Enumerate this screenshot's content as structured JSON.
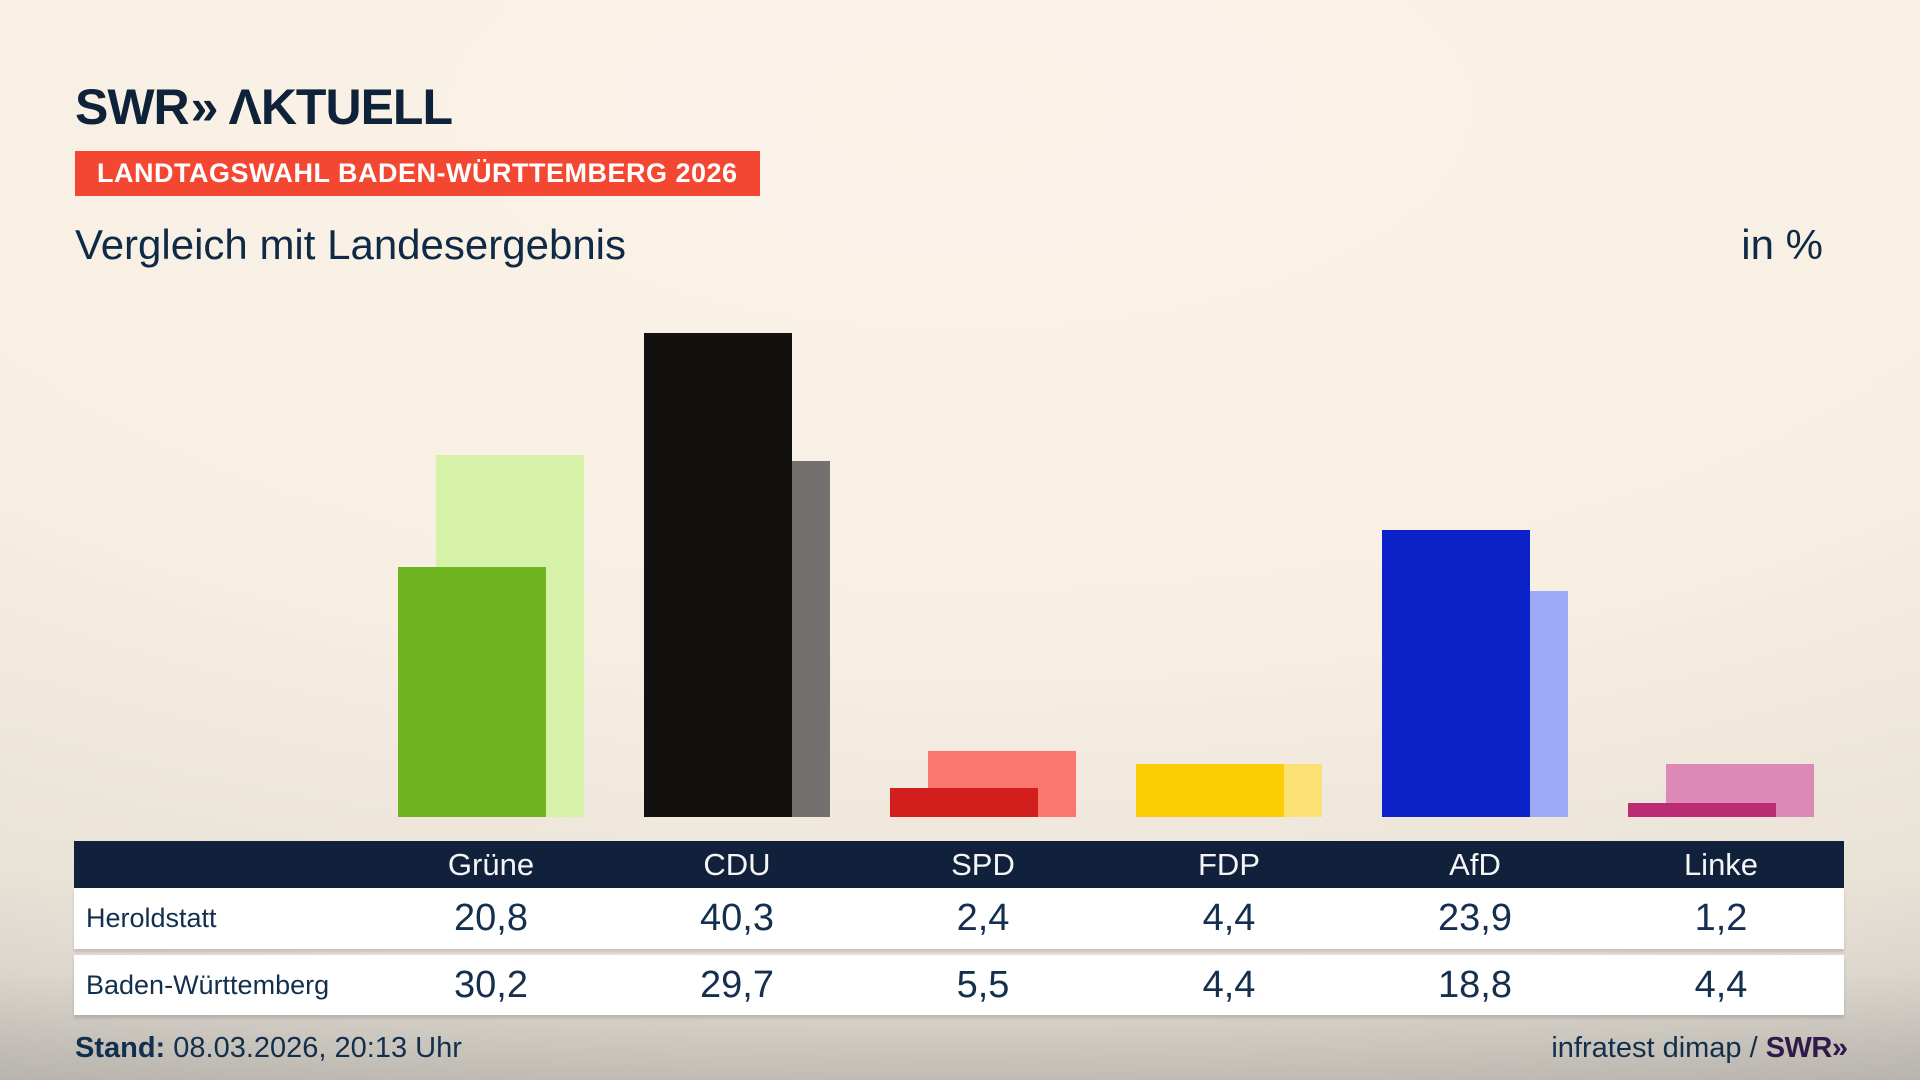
{
  "logo": {
    "brand": "SWR",
    "chevrons": "»",
    "suffix": "ΛKTUELL"
  },
  "badge": "LANDTAGSWAHL BADEN-WÜRTTEMBERG 2026",
  "title": "Vergleich mit Landesergebnis",
  "unit_label": "in %",
  "chart_data": {
    "type": "bar",
    "categories": [
      "Grüne",
      "CDU",
      "SPD",
      "FDP",
      "AfD",
      "Linke"
    ],
    "series": [
      {
        "name": "Heroldstatt",
        "values": [
          20.8,
          40.3,
          2.4,
          4.4,
          23.9,
          1.2
        ]
      },
      {
        "name": "Baden-Württemberg",
        "values": [
          30.2,
          29.7,
          5.5,
          4.4,
          18.8,
          4.4
        ]
      }
    ],
    "display_values": [
      [
        "20,8",
        "40,3",
        "2,4",
        "4,4",
        "23,9",
        "1,2"
      ],
      [
        "30,2",
        "29,7",
        "5,5",
        "4,4",
        "18,8",
        "4,4"
      ]
    ],
    "colors_local": [
      "#6eb320",
      "#131110",
      "#d31e1e",
      "#fccd02",
      "#0b22c8",
      "#bc2c74"
    ],
    "colors_state": [
      "#d6f2a8",
      "#737170",
      "#fa776f",
      "#fbe076",
      "#9caaf8",
      "#dd89b7"
    ],
    "title": "Vergleich mit Landesergebnis",
    "ylabel": "in %",
    "ylim": [
      0,
      45
    ],
    "legend_position": "table-rows",
    "grid": false
  },
  "table": {
    "row_labels": [
      "Heroldstatt",
      "Baden-Württemberg"
    ]
  },
  "footer": {
    "stand_label": "Stand:",
    "stand_value": "08.03.2026, 20:13 Uhr",
    "source_text": "infratest dimap /",
    "source_logo_brand": "SWR",
    "source_logo_chevrons": "»"
  },
  "colors": {
    "badge_red": "#f44732",
    "header_navy": "#12213b",
    "text_navy": "#0f2a46",
    "footer_logo_purple": "#31194a",
    "row_bg": "#ffffff"
  }
}
